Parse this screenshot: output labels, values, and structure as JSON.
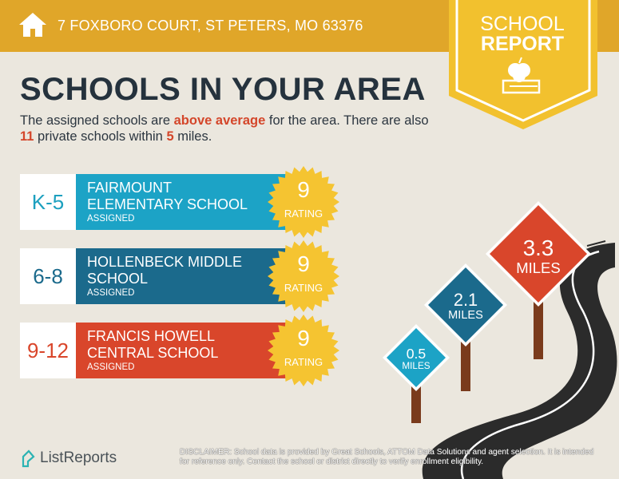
{
  "header": {
    "address": "7 FOXBORO COURT, ST PETERS, MO 63376",
    "icon": "house-icon"
  },
  "badge": {
    "line1": "SCHOOL",
    "line2": "REPORT",
    "icon": "apple-books-icon"
  },
  "title": "SCHOOLS IN YOUR AREA",
  "intro": {
    "p1": "The assigned schools are ",
    "h1": "above average",
    "p2": " for the area. There are also ",
    "h2": "11",
    "p3": " private schools within ",
    "h3": "5",
    "p4": " miles."
  },
  "schools": [
    {
      "grade": "K-5",
      "name": "FAIRMOUNT ELEMENTARY SCHOOL",
      "status": "ASSIGNED",
      "rating": "9",
      "rating_label": "RATING",
      "color": "#1ca3c6",
      "grade_color": "#1ca0bf"
    },
    {
      "grade": "6-8",
      "name": "HOLLENBECK MIDDLE SCHOOL",
      "status": "ASSIGNED",
      "rating": "9",
      "rating_label": "RATING",
      "color": "#1b6a8c",
      "grade_color": "#1b6a8c"
    },
    {
      "grade": "9-12",
      "name": "FRANCIS HOWELL CENTRAL SCHOOL",
      "status": "ASSIGNED",
      "rating": "9",
      "rating_label": "RATING",
      "color": "#d9462b",
      "grade_color": "#d9462b"
    }
  ],
  "signs": [
    {
      "value": "0.5",
      "unit": "MILES",
      "color": "#1ca3c6"
    },
    {
      "value": "2.1",
      "unit": "MILES",
      "color": "#1b6a8c"
    },
    {
      "value": "3.3",
      "unit": "MILES",
      "color": "#d9462b"
    }
  ],
  "footer": {
    "logo": "ListReports",
    "disclaimer_label": "DISCLAIMER:",
    "disclaimer": " School data is provided by Great Schools, ATTOM Data Solutions and agent selection. It is intended for reference only. Contact the school or district directly to verify enrollment eligibility."
  }
}
